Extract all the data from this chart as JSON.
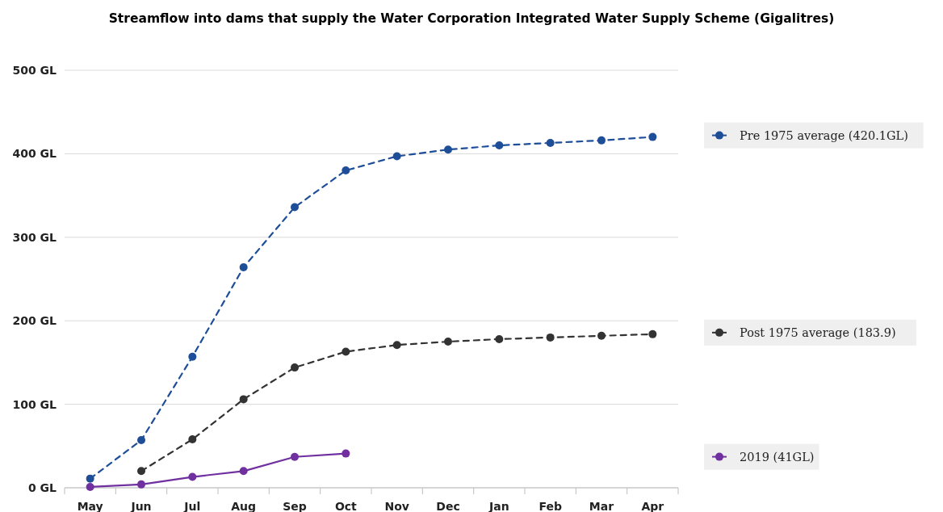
{
  "chart_data": {
    "type": "line",
    "title": "Streamflow into dams that supply the Water Corporation Integrated Water Supply Scheme (Gigalitres)",
    "categories": [
      "May",
      "Jun",
      "Jul",
      "Aug",
      "Sep",
      "Oct",
      "Nov",
      "Dec",
      "Jan",
      "Feb",
      "Mar",
      "Apr"
    ],
    "series": [
      {
        "name": "Pre 1975 average (420.1GL)",
        "color": "#1f4e99",
        "line_style": "dashed",
        "values": [
          11,
          57,
          157,
          264,
          336,
          380,
          397,
          405,
          410,
          413,
          416,
          420.1
        ]
      },
      {
        "name": "Post 1975 average (183.9)",
        "color": "#333333",
        "line_style": "dashed",
        "values": [
          null,
          20,
          58,
          106,
          144,
          163,
          171,
          175,
          178,
          180,
          182,
          183.9
        ]
      },
      {
        "name": "2019 (41GL)",
        "color": "#7030a0",
        "line_style": "solid",
        "values": [
          1,
          4,
          13,
          20,
          37,
          41,
          null,
          null,
          null,
          null,
          null,
          null
        ]
      }
    ],
    "ylim": [
      0,
      500
    ],
    "yticks": [
      {
        "value": 0,
        "label": "0 GL"
      },
      {
        "value": 100,
        "label": "100 GL"
      },
      {
        "value": 200,
        "label": "200 GL"
      },
      {
        "value": 300,
        "label": "300 GL"
      },
      {
        "value": 400,
        "label": "400 GL"
      },
      {
        "value": 500,
        "label": "500 GL"
      }
    ],
    "grid": "y",
    "legend": "right",
    "marker": "circle"
  }
}
